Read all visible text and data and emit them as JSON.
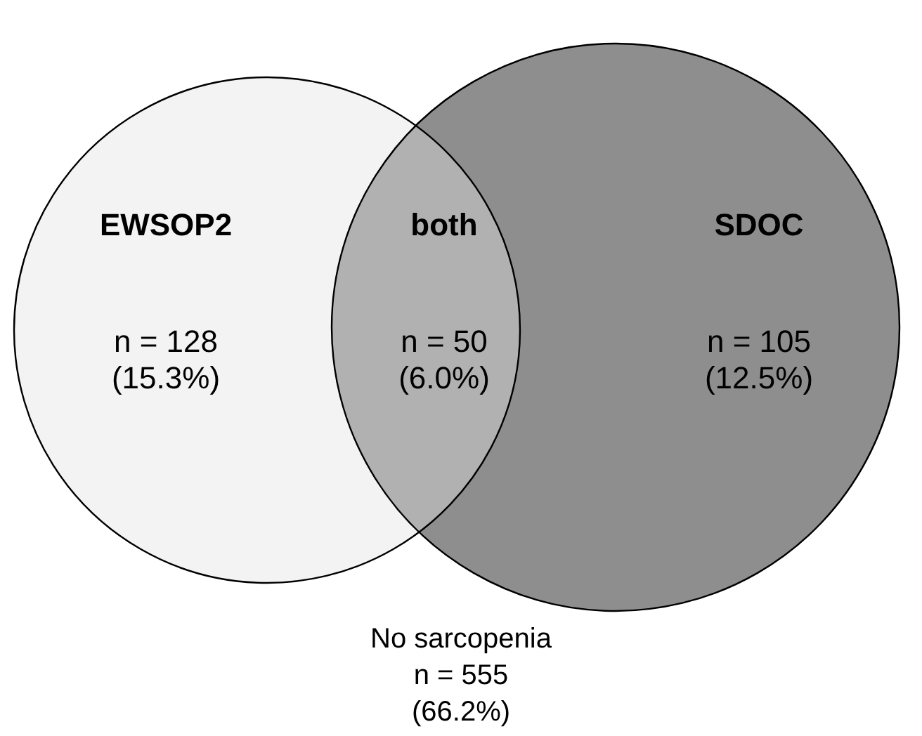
{
  "chart_data": {
    "type": "other",
    "categories": [
      "EWSOP2",
      "both",
      "SDOC",
      "No sarcopenia"
    ],
    "values": [
      128,
      50,
      105,
      555
    ],
    "value_labels": [
      "n = 128\n(15.3%)",
      "n = 50\n(6.0%)",
      "n = 105\n(12.5%)",
      "n = 555\n(66.2%)"
    ],
    "colors": [
      "#f3f3f3",
      "#b1b1b1",
      "#8e8e8e",
      "#ffffff"
    ]
  }
}
